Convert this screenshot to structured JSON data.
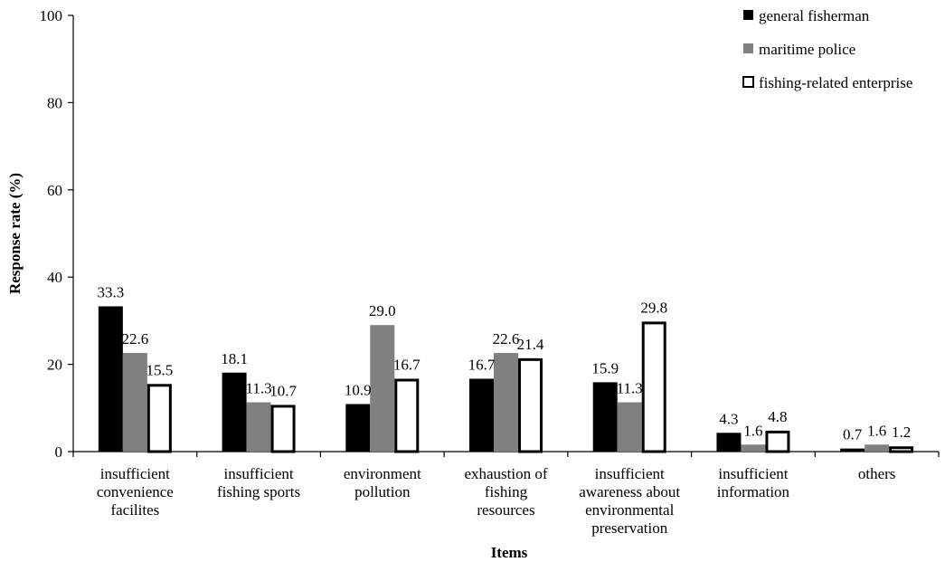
{
  "chart_data": {
    "type": "bar",
    "title": "",
    "xlabel": "Items",
    "ylabel": "Response rate (%)",
    "ylim": [
      0,
      100
    ],
    "yticks": [
      0,
      20,
      40,
      60,
      80,
      100
    ],
    "grid": false,
    "legend_position": "top-right",
    "categories": [
      "insufficient convenience facilites",
      "insufficient fishing sports",
      "environment pollution",
      "exhaustion of fishing resources",
      "insufficient awareness about environmental preservation",
      "insufficient information",
      "others"
    ],
    "category_lines": [
      [
        "insufficient",
        "convenience",
        "facilites"
      ],
      [
        "insufficient",
        "fishing sports"
      ],
      [
        "environment",
        "pollution"
      ],
      [
        "exhaustion of",
        "fishing",
        "resources"
      ],
      [
        "insufficient",
        "awareness about",
        "environmental",
        "preservation"
      ],
      [
        "insufficient",
        "information"
      ],
      [
        "others"
      ]
    ],
    "series": [
      {
        "name": "general fisherman",
        "color": "#000000",
        "values": [
          33.3,
          18.1,
          10.9,
          16.7,
          15.9,
          4.3,
          0.7
        ],
        "labels": [
          "33.3",
          "18.1",
          "10.9",
          "16.7",
          "15.9",
          "4.3",
          "0.7"
        ]
      },
      {
        "name": "maritime police",
        "color": "#808080",
        "values": [
          22.6,
          11.3,
          29.0,
          22.6,
          11.3,
          1.6,
          1.6
        ],
        "labels": [
          "22.6",
          "11.3",
          "29.0",
          "22.6",
          "11.3",
          "1.6",
          "1.6"
        ]
      },
      {
        "name": "fishing-related enterprise",
        "color": "#ffffff",
        "values": [
          15.5,
          10.7,
          16.7,
          21.4,
          29.8,
          4.8,
          1.2
        ],
        "labels": [
          "15.5",
          "10.7",
          "16.7",
          "21.4",
          "29.8",
          "4.8",
          "1.2"
        ]
      }
    ]
  }
}
